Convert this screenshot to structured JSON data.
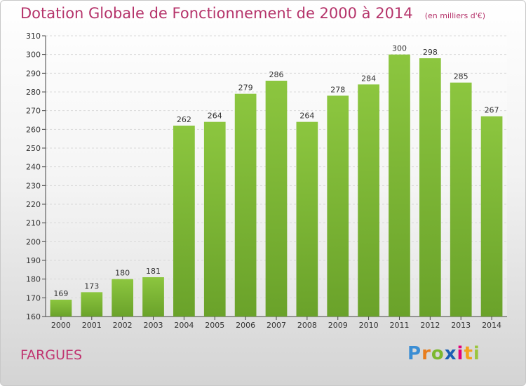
{
  "title": "Dotation Globale de Fonctionnement de 2000 à 2014",
  "subtitle": "(en milliers d'€)",
  "place": "FARGUES",
  "logo": {
    "letters": [
      "P",
      "r",
      "o",
      "x",
      "i",
      "t",
      "i"
    ],
    "colors": [
      "#3b8ed4",
      "#e87d1e",
      "#7cb82f",
      "#1a5fb4",
      "#e4007c",
      "#f4a11d",
      "#9bc53d"
    ]
  },
  "colors": {
    "bar": "#8cc63f",
    "bar_dark": "#6aa22a",
    "grid": "#d9d9d9",
    "axis": "#444444",
    "title": "#b5336a"
  },
  "chart_data": {
    "type": "bar",
    "categories": [
      "2000",
      "2001",
      "2002",
      "2003",
      "2004",
      "2005",
      "2006",
      "2007",
      "2008",
      "2009",
      "2010",
      "2011",
      "2012",
      "2013",
      "2014"
    ],
    "values": [
      169,
      173,
      180,
      181,
      262,
      264,
      279,
      286,
      264,
      278,
      284,
      300,
      298,
      285,
      267
    ],
    "ylim": [
      160,
      310
    ],
    "yticks": [
      160,
      170,
      180,
      190,
      200,
      210,
      220,
      230,
      240,
      250,
      260,
      270,
      280,
      290,
      300,
      310
    ],
    "grid": true
  }
}
